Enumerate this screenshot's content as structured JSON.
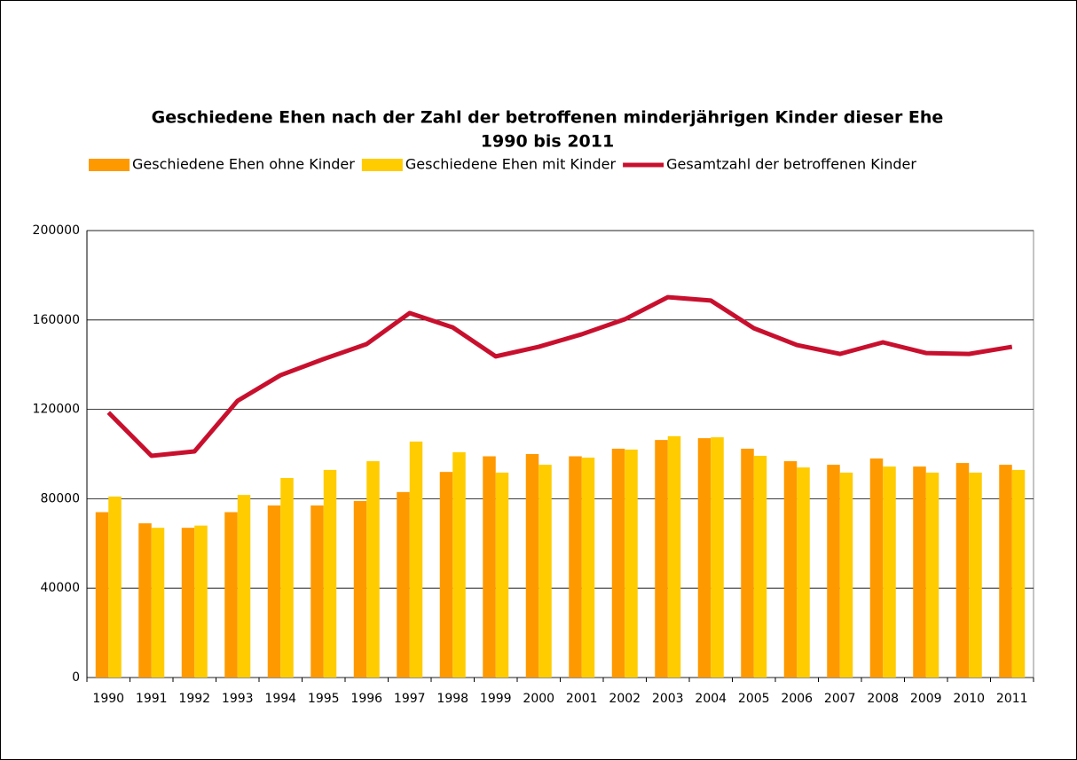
{
  "chart_data": {
    "type": "bar",
    "title": "Geschiedene Ehen nach der Zahl der betroffenen minderjährigen Kinder dieser Ehe",
    "subtitle": "1990 bis 2011",
    "categories": [
      "1990",
      "1991",
      "1992",
      "1993",
      "1994",
      "1995",
      "1996",
      "1997",
      "1998",
      "1999",
      "2000",
      "2001",
      "2002",
      "2003",
      "2004",
      "2005",
      "2006",
      "2007",
      "2008",
      "2009",
      "2010",
      "2011"
    ],
    "series": [
      {
        "name": "Geschiedene Ehen ohne Kinder",
        "color": "#ff9900",
        "type": "bar",
        "values": [
          74000,
          69000,
          67000,
          74000,
          77000,
          77000,
          79000,
          83000,
          92000,
          99000,
          100000,
          99000,
          102400,
          106300,
          107100,
          102400,
          96800,
          95200,
          98000,
          94400,
          96000,
          95200
        ]
      },
      {
        "name": "Geschiedene Ehen mit Kinder",
        "color": "#ffcc00",
        "type": "bar",
        "values": [
          81000,
          67000,
          68000,
          81700,
          89300,
          92900,
          96800,
          105600,
          100800,
          91700,
          95200,
          98400,
          102000,
          108000,
          107500,
          99200,
          94000,
          91700,
          94400,
          91700,
          91700,
          92900
        ]
      },
      {
        "name": "Gesamtzahl der betroffenen Kinder",
        "color": "#c8102e",
        "type": "line",
        "values": [
          118600,
          99200,
          101200,
          123800,
          135300,
          142500,
          149200,
          163100,
          156700,
          143700,
          148000,
          153600,
          160300,
          170200,
          168700,
          156300,
          148800,
          144800,
          150000,
          145200,
          144800,
          148000
        ]
      }
    ],
    "ylim": [
      0,
      200000
    ],
    "yticks": [
      0,
      40000,
      80000,
      120000,
      160000,
      200000
    ],
    "grid": true
  }
}
